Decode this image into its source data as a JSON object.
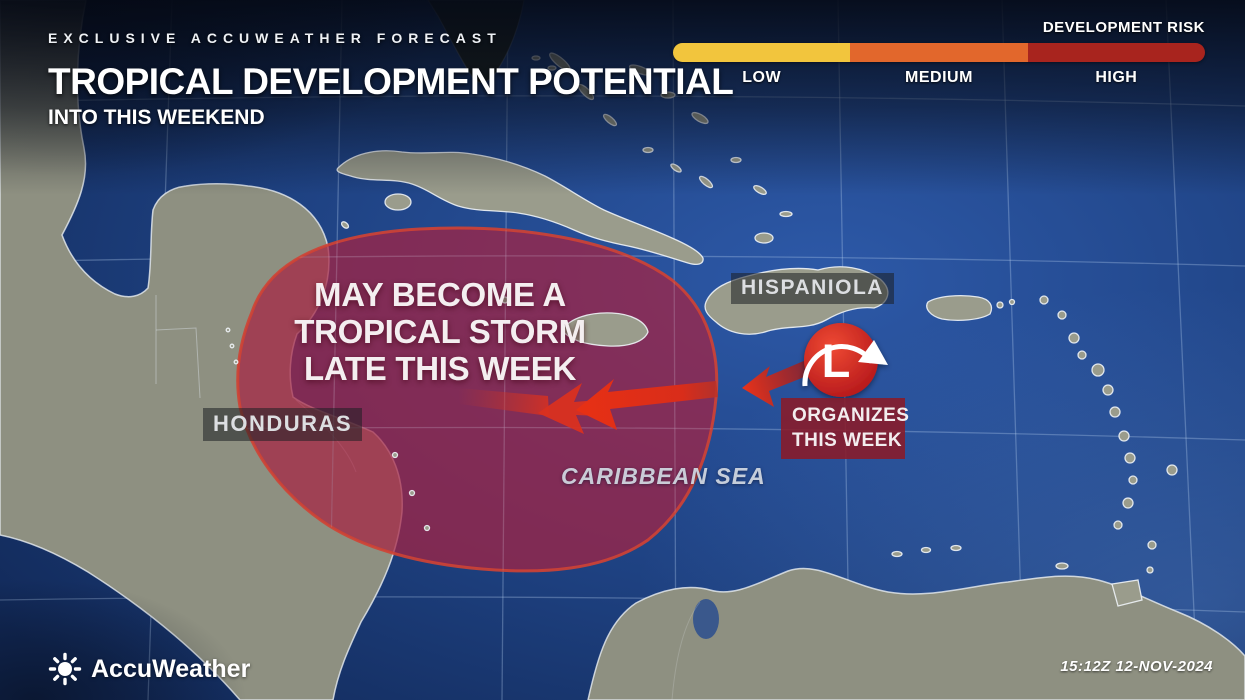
{
  "header": {
    "kicker": "EXCLUSIVE ACCUWEATHER FORECAST",
    "title": "TROPICAL DEVELOPMENT POTENTIAL",
    "subtitle": "INTO THIS WEEKEND"
  },
  "legend": {
    "title": "DEVELOPMENT RISK",
    "levels": [
      {
        "label": "LOW",
        "color": "#F2C53D"
      },
      {
        "label": "MEDIUM",
        "color": "#E2672C"
      },
      {
        "label": "HIGH",
        "color": "#A8241E"
      }
    ]
  },
  "map": {
    "place_labels": {
      "hispaniola": "HISPANIOLA",
      "honduras": "HONDURAS",
      "caribbean_sea": "CARIBBEAN SEA"
    },
    "annotations": {
      "risk_area_lines": [
        "MAY BECOME A",
        "TROPICAL STORM",
        "LATE THIS WEEK"
      ],
      "low_symbol": "L",
      "organizes_lines": [
        "ORGANIZES",
        "THIS WEEK"
      ]
    },
    "colors": {
      "risk_area_fill": "#A62342",
      "risk_area_border": "#CF4334",
      "arrow_red": "#E2301C",
      "low_pressure_red": "#C41E22",
      "ocean_blue": "#1E4181",
      "land_gray": "#8E9081"
    }
  },
  "footer": {
    "brand": "AccuWeather",
    "timestamp": "15:12Z 12-NOV-2024"
  }
}
